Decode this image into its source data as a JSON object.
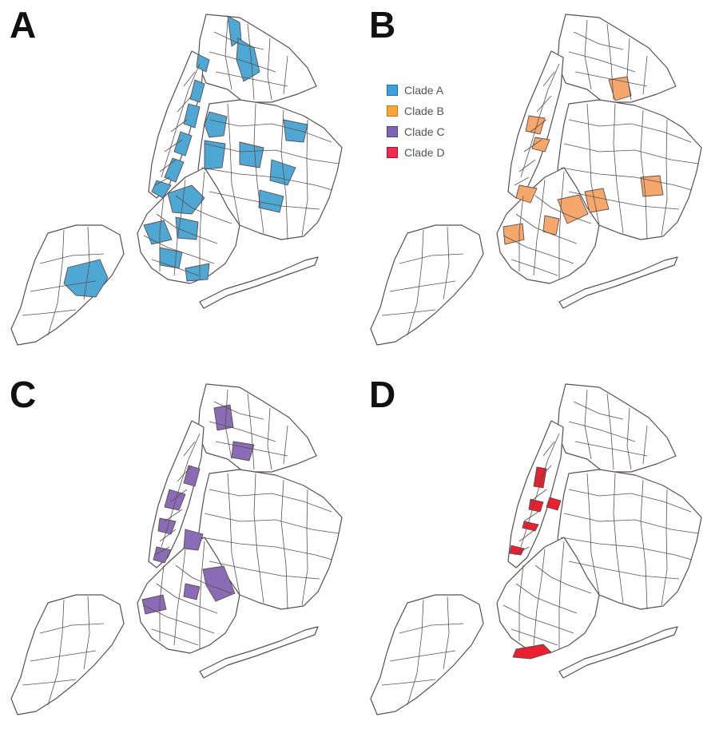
{
  "figure": {
    "panels": [
      {
        "letter": "A",
        "clade": "Clade A",
        "color": "#4fa7d3"
      },
      {
        "letter": "B",
        "clade": "Clade B",
        "color": "#f6a86c"
      },
      {
        "letter": "C",
        "clade": "Clade C",
        "color": "#8a6bb5"
      },
      {
        "letter": "D",
        "clade": "Clade D",
        "color": "#e8202f"
      }
    ]
  },
  "legend": {
    "items": [
      {
        "label": "Clade A",
        "color": "#3aa2d9",
        "border": "#1f6fa4"
      },
      {
        "label": "Clade B",
        "color": "#f7a43a",
        "border": "#c77a12"
      },
      {
        "label": "Clade C",
        "color": "#8064b4",
        "border": "#563f86"
      },
      {
        "label": "Clade D",
        "color": "#ef2b52",
        "border": "#b3102e"
      }
    ]
  },
  "map": {
    "boundary_color": "#5a4f4f",
    "region": "New York City ZIP-code areas"
  }
}
